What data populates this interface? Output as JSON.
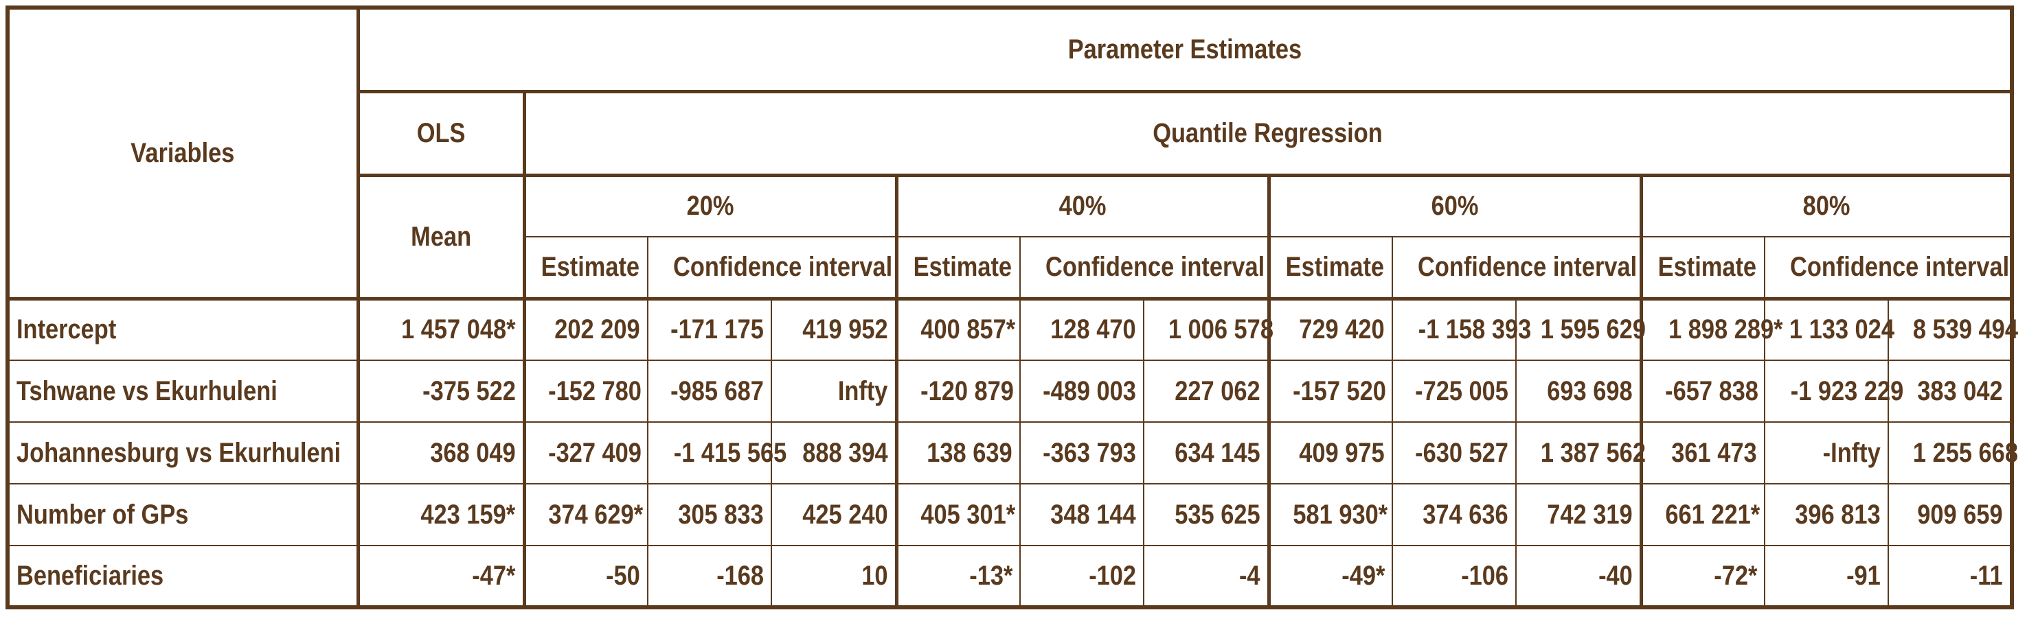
{
  "header": {
    "variables": "Variables",
    "parameter_estimates": "Parameter Estimates",
    "ols": "OLS",
    "quantile_regression": "Quantile Regression",
    "mean": "Mean",
    "quantiles": [
      "20%",
      "40%",
      "60%",
      "80%"
    ],
    "estimate": "Estimate",
    "confidence_interval": "Confidence interval"
  },
  "rows": [
    {
      "variable": "Intercept",
      "ols": "1 457 048*",
      "q20": [
        "202 209",
        "-171 175",
        "419 952"
      ],
      "q40": [
        "400 857*",
        "128 470",
        "1 006 578"
      ],
      "q60": [
        "729 420",
        "-1 158 393",
        "1 595 629"
      ],
      "q80": [
        "1 898 289*",
        "1 133 024",
        "8 539 494"
      ]
    },
    {
      "variable": "Tshwane vs Ekurhuleni",
      "ols": "-375 522",
      "q20": [
        "-152 780",
        "-985 687",
        "Infty"
      ],
      "q40": [
        "-120 879",
        "-489 003",
        "227 062"
      ],
      "q60": [
        "-157 520",
        "-725 005",
        "693 698"
      ],
      "q80": [
        "-657 838",
        "-1 923 229",
        "383 042"
      ]
    },
    {
      "variable": "Johannesburg vs Ekurhuleni",
      "ols": "368 049",
      "q20": [
        "-327 409",
        "-1 415 565",
        "888 394"
      ],
      "q40": [
        "138 639",
        "-363 793",
        "634 145"
      ],
      "q60": [
        "409 975",
        "-630 527",
        "1 387 562"
      ],
      "q80": [
        "361 473",
        "-Infty",
        "1 255 668"
      ]
    },
    {
      "variable": "Number of GPs",
      "ols": "423 159*",
      "q20": [
        "374 629*",
        "305 833",
        "425 240"
      ],
      "q40": [
        "405 301*",
        "348 144",
        "535 625"
      ],
      "q60": [
        "581 930*",
        "374 636",
        "742 319"
      ],
      "q80": [
        "661 221*",
        "396 813",
        "909 659"
      ]
    },
    {
      "variable": "Beneficiaries",
      "ols": "-47*",
      "q20": [
        "-50",
        "-168",
        "10"
      ],
      "q40": [
        "-13*",
        "-102",
        "-4"
      ],
      "q60": [
        "-49*",
        "-106",
        "-40"
      ],
      "q80": [
        "-72*",
        "-91",
        "-11"
      ]
    }
  ],
  "colors": {
    "text": "#5a3a1e",
    "border": "#5a3a1e",
    "background": "#ffffff"
  }
}
